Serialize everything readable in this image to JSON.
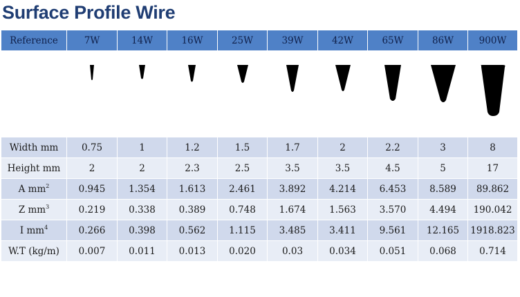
{
  "title": "Surface Profile Wire",
  "header": {
    "reference": "Reference",
    "columns": [
      "7W",
      "14W",
      "16W",
      "25W",
      "39W",
      "42W",
      "65W",
      "86W",
      "900W"
    ]
  },
  "rows": {
    "width": {
      "label": "Width mm",
      "values": [
        "0.75",
        "1",
        "1.2",
        "1.5",
        "1.7",
        "2",
        "2.2",
        "3",
        "8"
      ]
    },
    "height": {
      "label": "Height mm",
      "values": [
        "2",
        "2",
        "2.3",
        "2.5",
        "3.5",
        "3.5",
        "4.5",
        "5",
        "17"
      ]
    },
    "area": {
      "label": "A mm",
      "sup": "2",
      "values": [
        "0.945",
        "1.354",
        "1.613",
        "2.461",
        "3.892",
        "4.214",
        "6.453",
        "8.589",
        "89.862"
      ]
    },
    "z": {
      "label": "Z mm",
      "sup": "3",
      "values": [
        "0.219",
        "0.338",
        "0.389",
        "0.748",
        "1.674",
        "1.563",
        "3.570",
        "4.494",
        "190.042"
      ]
    },
    "i": {
      "label": "I mm",
      "sup": "4",
      "values": [
        "0.266",
        "0.398",
        "0.562",
        "1.115",
        "3.485",
        "3.411",
        "9.561",
        "12.165",
        "1918.823"
      ]
    },
    "wt": {
      "label": "W.T (kg/m)",
      "values": [
        "0.007",
        "0.011",
        "0.013",
        "0.020",
        "0.03",
        "0.034",
        "0.051",
        "0.068",
        "0.714"
      ]
    }
  },
  "colors": {
    "title": "#1f3d73",
    "header_bg": "#4f81c7",
    "row_dark": "#d0d9ec",
    "row_light": "#e8edf6",
    "profile_fill": "#000000"
  },
  "profile_icons": [
    "wedge-profile-icon"
  ]
}
